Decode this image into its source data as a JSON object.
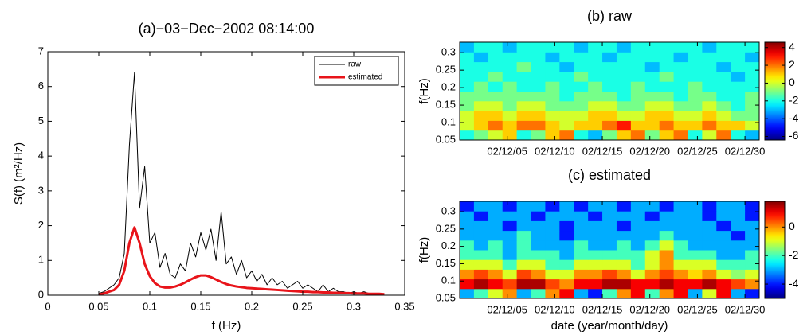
{
  "chart_data": [
    {
      "type": "line",
      "title": "(a)−03−Dec−2002 08:14:00",
      "xlabel": "f (Hz)",
      "ylabel": "S(f) (m²/Hz)",
      "x": [
        0.05,
        0.055,
        0.06,
        0.065,
        0.07,
        0.075,
        0.08,
        0.085,
        0.09,
        0.095,
        0.1,
        0.105,
        0.11,
        0.115,
        0.12,
        0.125,
        0.13,
        0.135,
        0.14,
        0.145,
        0.15,
        0.155,
        0.16,
        0.165,
        0.17,
        0.175,
        0.18,
        0.185,
        0.19,
        0.195,
        0.2,
        0.205,
        0.21,
        0.215,
        0.22,
        0.225,
        0.23,
        0.235,
        0.24,
        0.245,
        0.25,
        0.255,
        0.26,
        0.265,
        0.27,
        0.275,
        0.28,
        0.285,
        0.29,
        0.295,
        0.3,
        0.305,
        0.31,
        0.315,
        0.32,
        0.325,
        0.33
      ],
      "series": [
        {
          "name": "raw",
          "color": "#000000",
          "width": 1,
          "values": [
            0.05,
            0.1,
            0.2,
            0.3,
            0.5,
            1.2,
            4.3,
            6.4,
            2.5,
            3.7,
            1.5,
            1.8,
            0.8,
            1.2,
            0.6,
            0.5,
            0.9,
            0.7,
            1.5,
            1.1,
            1.8,
            1.3,
            1.9,
            1.0,
            2.4,
            0.9,
            1.1,
            0.6,
            1.0,
            0.5,
            0.7,
            0.4,
            0.6,
            0.3,
            0.5,
            0.3,
            0.4,
            0.2,
            0.3,
            0.4,
            0.2,
            0.3,
            0.2,
            0.1,
            0.3,
            0.1,
            0.2,
            0.1,
            0.1,
            0.05,
            0.1,
            0.05,
            0.1,
            0.05,
            0.05,
            0.03,
            0.03
          ]
        },
        {
          "name": "estimated",
          "color": "#e8141a",
          "width": 3,
          "values": [
            0.02,
            0.05,
            0.1,
            0.15,
            0.3,
            0.7,
            1.5,
            1.95,
            1.5,
            0.9,
            0.55,
            0.35,
            0.25,
            0.22,
            0.22,
            0.25,
            0.3,
            0.37,
            0.45,
            0.52,
            0.57,
            0.57,
            0.52,
            0.45,
            0.38,
            0.32,
            0.28,
            0.25,
            0.23,
            0.21,
            0.2,
            0.19,
            0.18,
            0.17,
            0.16,
            0.15,
            0.14,
            0.13,
            0.12,
            0.11,
            0.1,
            0.1,
            0.09,
            0.09,
            0.08,
            0.08,
            0.07,
            0.07,
            0.06,
            0.06,
            0.05,
            0.05,
            0.05,
            0.04,
            0.04,
            0.04,
            0.03
          ]
        }
      ],
      "xlim": [
        0,
        0.35
      ],
      "xticks": [
        0,
        0.05,
        0.1,
        0.15,
        0.2,
        0.25,
        0.3,
        0.35
      ],
      "ylim": [
        0,
        7
      ],
      "yticks": [
        0,
        1,
        2,
        3,
        4,
        5,
        6,
        7
      ],
      "legend": "upper right"
    },
    {
      "type": "heatmap",
      "title": "(b) raw",
      "ylabel": "f(Hz)",
      "colormap": "jet",
      "x": [
        0.75,
        2.25,
        3.75,
        5.25,
        6.75,
        8.25,
        9.75,
        11.25,
        12.75,
        14.25,
        15.75,
        17.25,
        18.75,
        20.25,
        21.75,
        23.25,
        24.75,
        26.25,
        27.75,
        29.25,
        30.75
      ],
      "y": [
        0.064,
        0.092,
        0.12,
        0.148,
        0.176,
        0.204,
        0.232,
        0.26,
        0.288,
        0.316
      ],
      "z": [
        [
          -2,
          -1,
          0,
          1,
          -2,
          -1,
          1,
          2,
          -2,
          -3,
          -1,
          1,
          2,
          -1,
          1,
          2,
          -2,
          0,
          2,
          -2,
          -3
        ],
        [
          0,
          1,
          2,
          1,
          2,
          2,
          1,
          0,
          1,
          1,
          2,
          3,
          1,
          1,
          2,
          1,
          1,
          2,
          1,
          1,
          0
        ],
        [
          0,
          1,
          1,
          0,
          1,
          1,
          0,
          0,
          0,
          1,
          1,
          0,
          0,
          1,
          1,
          0,
          0,
          1,
          0,
          -1,
          -1
        ],
        [
          -1,
          0,
          0,
          -1,
          0,
          0,
          -1,
          -1,
          -1,
          0,
          0,
          -1,
          -1,
          0,
          0,
          -1,
          -1,
          0,
          -1,
          -2,
          -1
        ],
        [
          -1,
          -1,
          -1,
          -1,
          -1,
          -1,
          -1,
          -2,
          -1,
          -1,
          -1,
          -2,
          -1,
          -1,
          -1,
          -2,
          -1,
          -1,
          -2,
          -2,
          -1
        ],
        [
          -2,
          -1,
          -2,
          -1,
          -2,
          -2,
          -1,
          -2,
          -2,
          -1,
          -2,
          -2,
          -1,
          -2,
          -2,
          -2,
          -1,
          -2,
          -2,
          -2,
          -2
        ],
        [
          -2,
          -2,
          -1,
          -2,
          -2,
          -2,
          -2,
          -2,
          -1,
          -2,
          -2,
          -2,
          -2,
          -2,
          -1,
          -2,
          -2,
          -2,
          -2,
          -3,
          -2
        ],
        [
          -2,
          -2,
          -2,
          -2,
          -1,
          -2,
          -2,
          -3,
          -2,
          -2,
          -2,
          -2,
          -2,
          -3,
          -2,
          -2,
          -2,
          -2,
          -3,
          -2,
          -2
        ],
        [
          -2,
          -3,
          -2,
          -2,
          -2,
          -2,
          -3,
          -2,
          -2,
          -2,
          -3,
          -2,
          -2,
          -2,
          -2,
          -3,
          -2,
          -2,
          -2,
          -2,
          -3
        ],
        [
          -3,
          -2,
          -2,
          -3,
          -2,
          -2,
          -2,
          -2,
          -3,
          -2,
          -2,
          -3,
          -2,
          -2,
          -2,
          -2,
          -2,
          -3,
          -2,
          -2,
          -2
        ]
      ],
      "xlim": [
        0,
        31.5
      ],
      "xticks": [
        {
          "value": 5,
          "label": "02/12/05"
        },
        {
          "value": 10,
          "label": "02/12/10"
        },
        {
          "value": 15,
          "label": "02/12/15"
        },
        {
          "value": 20,
          "label": "02/12/20"
        },
        {
          "value": 25,
          "label": "02/12/25"
        },
        {
          "value": 30,
          "label": "02/12/30"
        }
      ],
      "ylim": [
        0.05,
        0.33
      ],
      "yticks": [
        0.05,
        0.1,
        0.15,
        0.2,
        0.25,
        0.3
      ],
      "clim": [
        -6.4,
        4.6
      ],
      "cticks": [
        -6,
        -4,
        -2,
        0,
        2,
        4
      ]
    },
    {
      "type": "heatmap",
      "title": "(c) estimated",
      "ylabel": "f(Hz)",
      "xlabel": "date (year/month/day)",
      "colormap": "jet",
      "x": [
        0.75,
        2.25,
        3.75,
        5.25,
        6.75,
        8.25,
        9.75,
        11.25,
        12.75,
        14.25,
        15.75,
        17.25,
        18.75,
        20.25,
        21.75,
        23.25,
        24.75,
        26.25,
        27.75,
        29.25,
        30.75
      ],
      "y": [
        0.064,
        0.092,
        0.12,
        0.148,
        0.176,
        0.204,
        0.232,
        0.26,
        0.288,
        0.316
      ],
      "z": [
        [
          -3,
          -2,
          -1,
          0,
          -3,
          -2,
          0,
          1,
          -3,
          -4,
          -2,
          0,
          1,
          -2,
          0,
          1,
          -3,
          -1,
          1,
          -3,
          -4
        ],
        [
          1,
          1.5,
          1,
          0.5,
          1.5,
          1.5,
          0.5,
          0,
          1,
          1,
          1.5,
          1.5,
          1,
          1,
          1.5,
          1,
          1,
          1.5,
          1,
          0.5,
          0
        ],
        [
          0,
          0.5,
          0,
          -1,
          0.5,
          0,
          -1,
          -1,
          0,
          0,
          0.5,
          0,
          -1,
          0,
          0.5,
          0,
          -0.5,
          0,
          -1,
          -1.5,
          -1
        ],
        [
          -1,
          -1,
          -1,
          -2,
          -1,
          -1,
          -2,
          -2,
          -1,
          -1,
          -1,
          -1,
          -2,
          -1,
          0,
          -1,
          -1,
          -1,
          -2,
          -2,
          -2
        ],
        [
          -2,
          -2,
          -2,
          -3,
          -2,
          -2,
          -2,
          -3,
          -2,
          -2,
          -2,
          -2,
          -2,
          -1,
          0,
          -2,
          -2,
          -2,
          -3,
          -3,
          -2
        ],
        [
          -2,
          -3,
          -2,
          -3,
          -2,
          -3,
          -3,
          -3,
          -2,
          -3,
          -3,
          -2,
          -3,
          -2,
          -1,
          -2,
          -3,
          -3,
          -3,
          -3,
          -3
        ],
        [
          -3,
          -3,
          -3,
          -3,
          -2,
          -3,
          -3,
          -4,
          -3,
          -3,
          -3,
          -3,
          -3,
          -3,
          -2,
          -3,
          -3,
          -3,
          -3,
          -4,
          -3
        ],
        [
          -3,
          -3,
          -3,
          -4,
          -3,
          -3,
          -3,
          -4,
          -3,
          -3,
          -3,
          -4,
          -3,
          -3,
          -3,
          -3,
          -3,
          -3,
          -4,
          -3,
          -3
        ],
        [
          -3,
          -4,
          -3,
          -3,
          -3,
          -4,
          -3,
          -3,
          -3,
          -4,
          -3,
          -3,
          -3,
          -4,
          -3,
          -3,
          -3,
          -4,
          -3,
          -3,
          -4
        ],
        [
          -4,
          -3,
          -3,
          -4,
          -3,
          -3,
          -4,
          -3,
          -4,
          -3,
          -3,
          -4,
          -3,
          -3,
          -4,
          -3,
          -3,
          -4,
          -3,
          -3,
          -4
        ]
      ],
      "xlim": [
        0,
        31.5
      ],
      "xticks": [
        {
          "value": 5,
          "label": "02/12/05"
        },
        {
          "value": 10,
          "label": "02/12/10"
        },
        {
          "value": 15,
          "label": "02/12/15"
        },
        {
          "value": 20,
          "label": "02/12/20"
        },
        {
          "value": 25,
          "label": "02/12/25"
        },
        {
          "value": 30,
          "label": "02/12/30"
        }
      ],
      "ylim": [
        0.05,
        0.33
      ],
      "yticks": [
        0.05,
        0.1,
        0.15,
        0.2,
        0.25,
        0.3
      ],
      "clim": [
        -5,
        1.8
      ],
      "cticks": [
        -4,
        -2,
        0
      ]
    }
  ]
}
